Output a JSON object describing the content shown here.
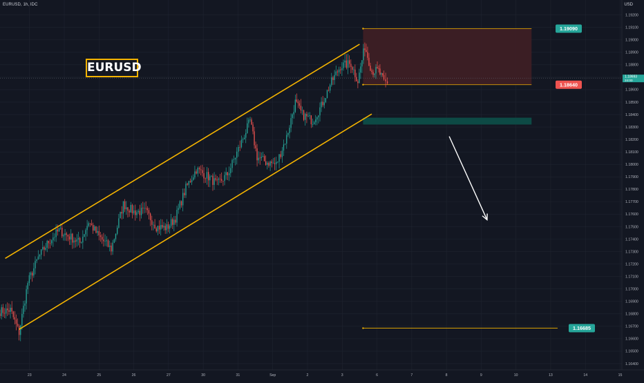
{
  "header": {
    "symbol_info": "EURUSD, 1h, IDC",
    "currency": "USD"
  },
  "badge": {
    "label": "EURUSD"
  },
  "colors": {
    "background": "#131722",
    "up": "#26a69a",
    "down": "#ef5350",
    "channel": "#f5b400",
    "zone_fill": "#3d1f25",
    "support_zone": "#0d4a45",
    "arrow": "#ffffff",
    "grid": "#1f2430"
  },
  "chart_data": {
    "type": "candlestick",
    "title": "EURUSD",
    "timeframe": "1h",
    "y_axis": {
      "ylim": [
        1.1635,
        1.1932
      ],
      "ticks": [
        "1.16400",
        "1.16500",
        "1.16600",
        "1.16700",
        "1.16800",
        "1.16900",
        "1.17000",
        "1.17100",
        "1.17200",
        "1.17300",
        "1.17400",
        "1.17500",
        "1.17600",
        "1.17700",
        "1.17800",
        "1.17900",
        "1.18000",
        "1.18100",
        "1.18200",
        "1.18300",
        "1.18400",
        "1.18500",
        "1.18600",
        "1.18700",
        "1.18800",
        "1.18900",
        "1.19000",
        "1.19100",
        "1.19200",
        "1.19300"
      ]
    },
    "x_axis": {
      "ticks": [
        {
          "label": "23",
          "x": 2.9
        },
        {
          "label": "24",
          "x": 3.9
        },
        {
          "label": "25",
          "x": 4.9
        },
        {
          "label": "26",
          "x": 5.9
        },
        {
          "label": "27",
          "x": 6.9
        },
        {
          "label": "30",
          "x": 7.9
        },
        {
          "label": "31",
          "x": 8.9
        },
        {
          "label": "Sep",
          "x": 9.9
        },
        {
          "label": "2",
          "x": 10.9
        },
        {
          "label": "3",
          "x": 11.9
        },
        {
          "label": "6",
          "x": 12.9
        },
        {
          "label": "7",
          "x": 13.9
        },
        {
          "label": "8",
          "x": 14.9
        },
        {
          "label": "9",
          "x": 15.9
        },
        {
          "label": "10",
          "x": 16.9
        },
        {
          "label": "13",
          "x": 17.9
        },
        {
          "label": "14",
          "x": 18.9
        },
        {
          "label": "15",
          "x": 19.9
        }
      ],
      "xlim": [
        2.05,
        19.95
      ]
    },
    "current_price": {
      "label": "1.18693",
      "sublabel": "24:00",
      "value": 1.18693
    },
    "price_labels": [
      {
        "label": "1.19090",
        "value": 1.1909,
        "color": "#26a69a"
      },
      {
        "label": "1.18640",
        "value": 1.1864,
        "color": "#ef5350"
      },
      {
        "label": "1.16685",
        "value": 1.16685,
        "color": "#26a69a"
      }
    ],
    "resistance_zone": {
      "y_top": 1.1909,
      "y_bottom": 1.1864,
      "x_start": 12.5,
      "x_end": 17.35
    },
    "support_zone": {
      "y_top": 1.18375,
      "y_bottom": 1.1832,
      "x_start": 12.5,
      "x_end": 17.35
    },
    "target_line": {
      "y": 1.16685,
      "x_start": 12.5,
      "x_end": 18.1
    },
    "channel_upper": [
      [
        2.2,
        1.17245
      ],
      [
        12.4,
        1.18965
      ]
    ],
    "channel_lower": [
      [
        2.6,
        1.16675
      ],
      [
        12.75,
        1.18405
      ]
    ],
    "arrow": {
      "from": [
        14.98,
        1.18225
      ],
      "to": [
        16.07,
        1.17555
      ]
    },
    "anchors": [
      [
        2.05,
        1.1682
      ],
      [
        2.35,
        1.1683
      ],
      [
        2.6,
        1.1665
      ],
      [
        2.85,
        1.1705
      ],
      [
        3.15,
        1.1725
      ],
      [
        3.45,
        1.1738
      ],
      [
        3.75,
        1.1747
      ],
      [
        4.05,
        1.1742
      ],
      [
        4.35,
        1.1737
      ],
      [
        4.6,
        1.1754
      ],
      [
        4.9,
        1.1742
      ],
      [
        5.25,
        1.1732
      ],
      [
        5.6,
        1.1768
      ],
      [
        5.9,
        1.1762
      ],
      [
        6.25,
        1.1762
      ],
      [
        6.55,
        1.175
      ],
      [
        6.85,
        1.1749
      ],
      [
        7.1,
        1.1757
      ],
      [
        7.4,
        1.1781
      ],
      [
        7.7,
        1.1796
      ],
      [
        8.05,
        1.179
      ],
      [
        8.3,
        1.1784
      ],
      [
        8.6,
        1.1792
      ],
      [
        9.0,
        1.1818
      ],
      [
        9.25,
        1.1835
      ],
      [
        9.45,
        1.1806
      ],
      [
        9.7,
        1.1802
      ],
      [
        10.0,
        1.18
      ],
      [
        10.3,
        1.1822
      ],
      [
        10.55,
        1.185
      ],
      [
        10.75,
        1.184
      ],
      [
        11.05,
        1.1835
      ],
      [
        11.3,
        1.1847
      ],
      [
        11.55,
        1.1864
      ],
      [
        11.85,
        1.1879
      ],
      [
        12.15,
        1.1881
      ],
      [
        12.35,
        1.1867
      ],
      [
        12.55,
        1.1895
      ],
      [
        12.75,
        1.1875
      ],
      [
        12.95,
        1.1875
      ],
      [
        13.1,
        1.1866
      ],
      [
        13.2,
        1.1865
      ]
    ]
  }
}
